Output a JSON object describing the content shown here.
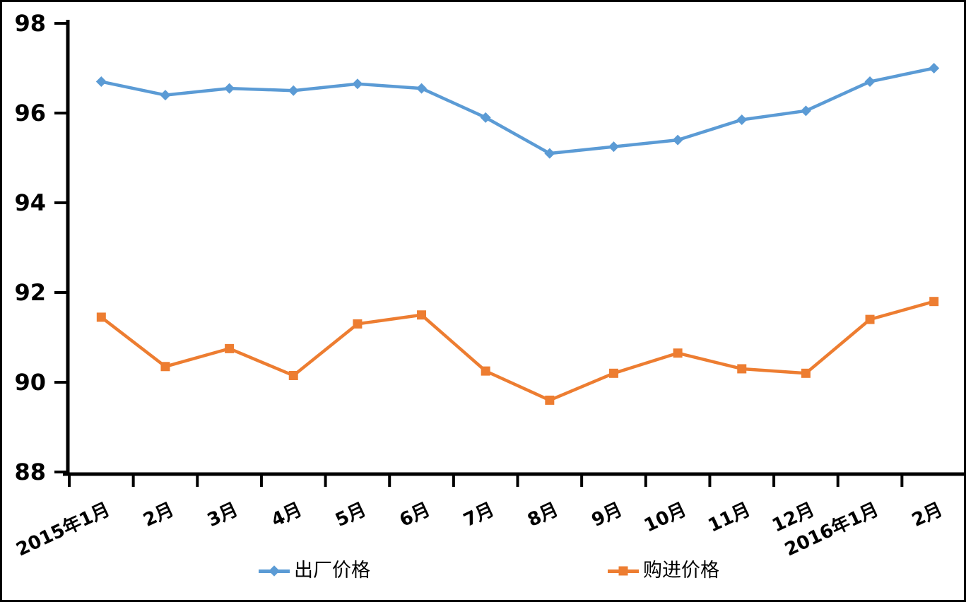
{
  "chart_data": {
    "type": "line",
    "categories": [
      "2015年1月",
      "2月",
      "3月",
      "4月",
      "5月",
      "6月",
      "7月",
      "8月",
      "9月",
      "10月",
      "11月",
      "12月",
      "2016年1月",
      "2月"
    ],
    "series": [
      {
        "name": "出厂价格",
        "color": "#5B9BD5",
        "marker": "diamond",
        "values": [
          96.7,
          96.4,
          96.55,
          96.5,
          96.65,
          96.55,
          95.9,
          95.1,
          95.25,
          95.4,
          95.85,
          96.05,
          96.7,
          97.0
        ]
      },
      {
        "name": "购进价格",
        "color": "#ED7D31",
        "marker": "square",
        "values": [
          91.45,
          90.35,
          90.75,
          90.15,
          91.3,
          91.5,
          90.25,
          89.6,
          90.2,
          90.65,
          90.3,
          90.2,
          91.4,
          91.8
        ]
      }
    ],
    "title": "",
    "xlabel": "",
    "ylabel": "",
    "ylim": [
      88,
      98
    ],
    "yticks": [
      88,
      90,
      92,
      94,
      96,
      98
    ],
    "grid": false,
    "legend_position": "bottom",
    "axis_color": "#000000",
    "background": "#FFFFFF",
    "x_label_rotation_deg": -25
  },
  "legend": {
    "items": [
      {
        "label": "出厂价格",
        "color": "#5B9BD5",
        "marker": "diamond-icon"
      },
      {
        "label": "购进价格",
        "color": "#ED7D31",
        "marker": "square-icon"
      }
    ]
  }
}
